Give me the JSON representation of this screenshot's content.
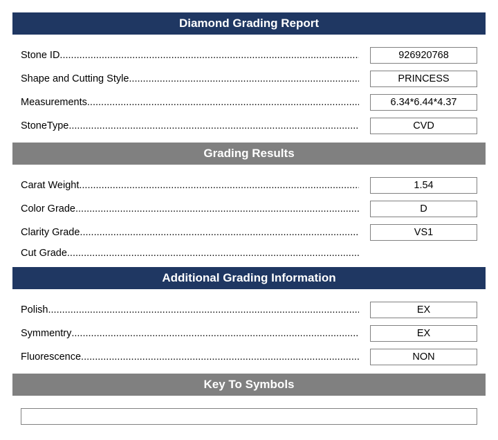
{
  "colors": {
    "navy": "#1f3762",
    "gray": "#808080",
    "text": "#000000",
    "white": "#ffffff"
  },
  "sections": {
    "diamond": {
      "title": "Diamond Grading Report",
      "rows": [
        {
          "label": "Stone ID",
          "value": "926920768"
        },
        {
          "label": "Shape and Cutting Style",
          "value": "PRINCESS"
        },
        {
          "label": "Measurements",
          "value": "6.34*6.44*4.37"
        },
        {
          "label": "StoneType",
          "value": "CVD"
        }
      ]
    },
    "grading": {
      "title": "Grading Results",
      "rows": [
        {
          "label": "Carat Weight",
          "value": "1.54"
        },
        {
          "label": "Color Grade",
          "value": "D"
        },
        {
          "label": "Clarity Grade",
          "value": "VS1"
        },
        {
          "label": "Cut Grade",
          "value": ""
        }
      ]
    },
    "additional": {
      "title": "Additional Grading Information",
      "rows": [
        {
          "label": "Polish",
          "value": "EX"
        },
        {
          "label": "Symmentry",
          "value": "EX"
        },
        {
          "label": "Fluorescence",
          "value": "NON"
        }
      ]
    },
    "key": {
      "title": "Key To Symbols"
    }
  }
}
